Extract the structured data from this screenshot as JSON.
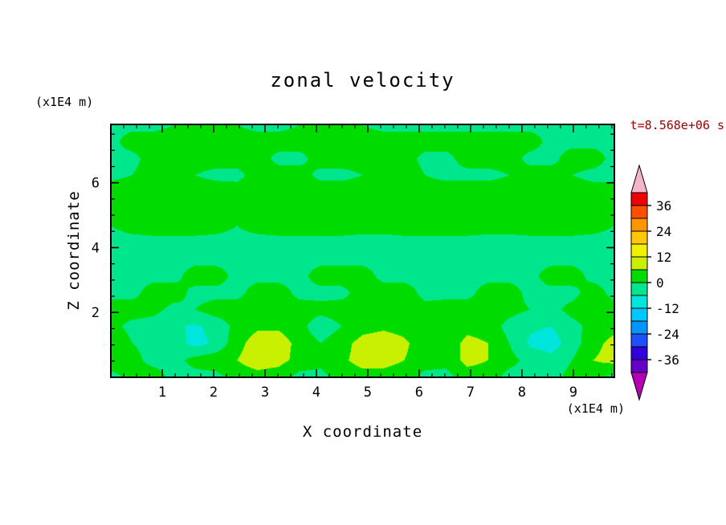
{
  "chart_data": {
    "type": "heatmap",
    "title": "zonal velocity",
    "time_label": "t=8.568e+06 s",
    "xlabel": "X coordinate",
    "ylabel": "Z coordinate",
    "x_unit": "(x1E4 m)",
    "z_unit": "(x1E4 m)",
    "x_range": [
      0,
      9.8
    ],
    "z_range": [
      0,
      7.8
    ],
    "x_ticks_major": [
      1,
      2,
      3,
      4,
      5,
      6,
      7,
      8,
      9
    ],
    "x_tick_minor_step": 0.25,
    "z_ticks_major": [
      2,
      4,
      6
    ],
    "z_tick_minor_step": 0.5,
    "grid_lines": false,
    "legend_position": "right-colorbar",
    "colorbar": {
      "labels": [
        36,
        24,
        12,
        0,
        -12,
        -24,
        -36
      ],
      "level_min": -42,
      "level_step": 6,
      "colors": [
        "#6400c8",
        "#3200dc",
        "#1e50ff",
        "#0096ff",
        "#00c8ff",
        "#00e6dc",
        "#00e68c",
        "#00dc00",
        "#c8f000",
        "#f0f000",
        "#ffc800",
        "#ff9600",
        "#ff5000",
        "#f00000"
      ],
      "under_color": "#b400b4",
      "over_color": "#f5b4c8"
    },
    "grid": {
      "x0": 0,
      "x1": 9.8,
      "z0": 0,
      "z1": 7.8,
      "values": [
        [
          -2,
          2,
          3,
          -2,
          -2,
          -2,
          3,
          4,
          3,
          -2,
          -2,
          3,
          4,
          4,
          3,
          -2,
          -2,
          3,
          3,
          -2,
          -2,
          -2,
          2,
          3,
          -2
        ],
        [
          4,
          2,
          -2,
          -2,
          2,
          4,
          6,
          9,
          8,
          4,
          2,
          5,
          8,
          8,
          6,
          3,
          2,
          8,
          6,
          2,
          -2,
          -4,
          0,
          6,
          8
        ],
        [
          6,
          0,
          -2,
          -3,
          -8,
          -5,
          4,
          9,
          9,
          4,
          0,
          4,
          8,
          9,
          7,
          3,
          2,
          8,
          6,
          0,
          -7,
          -9,
          -3,
          4,
          8
        ],
        [
          2,
          -2,
          -3,
          -5,
          -7,
          -4,
          2,
          5,
          5,
          2,
          -4,
          0,
          4,
          5,
          4,
          0,
          0,
          4,
          3,
          -2,
          -5,
          -6,
          -2,
          2,
          4
        ],
        [
          3,
          3,
          2,
          -2,
          0,
          3,
          3,
          3,
          3,
          3,
          2,
          3,
          3,
          3,
          3,
          2,
          3,
          3,
          3,
          2,
          0,
          -2,
          2,
          3,
          3
        ],
        [
          -2,
          -2,
          3,
          3,
          -2,
          -2,
          -2,
          3,
          3,
          -2,
          -2,
          -2,
          3,
          3,
          3,
          -2,
          -2,
          -2,
          3,
          3,
          -2,
          -2,
          -2,
          3,
          -2
        ],
        [
          -2,
          -2,
          -2,
          -2,
          3,
          3,
          -2,
          -2,
          -2,
          -2,
          3,
          3,
          3,
          -2,
          -2,
          -2,
          -2,
          -2,
          -2,
          -2,
          -2,
          3,
          3,
          -2,
          -2
        ],
        [
          -2,
          -2,
          -2,
          -2,
          -2,
          -2,
          -2,
          -2,
          -2,
          -2,
          -2,
          -2,
          -2,
          -2,
          -2,
          -2,
          -2,
          -2,
          -2,
          -2,
          -2,
          -2,
          -2,
          -2,
          -2
        ],
        [
          -2,
          -2,
          -2,
          -2,
          -2,
          -2,
          -2,
          -2,
          -2,
          -2,
          -2,
          -2,
          -2,
          -2,
          -2,
          -2,
          -2,
          -2,
          -2,
          -2,
          -2,
          -2,
          -2,
          -2,
          -2
        ],
        [
          0,
          2,
          3,
          3,
          3,
          2,
          0,
          2,
          3,
          3,
          3,
          3,
          2,
          2,
          3,
          3,
          3,
          3,
          2,
          2,
          3,
          3,
          3,
          2,
          0
        ],
        [
          4,
          4,
          4,
          4,
          4,
          4,
          4,
          4,
          4,
          4,
          4,
          4,
          4,
          4,
          4,
          4,
          4,
          4,
          4,
          4,
          4,
          4,
          4,
          4,
          4
        ],
        [
          4,
          4,
          4,
          4,
          4,
          4,
          3,
          3,
          4,
          4,
          4,
          4,
          4,
          4,
          3,
          3,
          4,
          4,
          4,
          4,
          4,
          4,
          4,
          3,
          3
        ],
        [
          -2,
          0,
          3,
          3,
          0,
          -2,
          -2,
          3,
          3,
          3,
          -2,
          -2,
          0,
          3,
          3,
          0,
          -2,
          -2,
          -2,
          0,
          3,
          3,
          0,
          -2,
          -2
        ],
        [
          -2,
          -2,
          3,
          3,
          3,
          3,
          3,
          3,
          -2,
          -2,
          3,
          3,
          3,
          3,
          3,
          -2,
          -2,
          3,
          3,
          3,
          -2,
          -2,
          3,
          3,
          -2
        ],
        [
          -2,
          3,
          3,
          3,
          3,
          3,
          3,
          3,
          3,
          3,
          3,
          3,
          3,
          3,
          3,
          3,
          3,
          3,
          3,
          3,
          3,
          -2,
          -2,
          -2,
          -2
        ],
        [
          -2,
          -2,
          -2,
          0,
          2,
          2,
          0,
          -2,
          -2,
          0,
          2,
          2,
          0,
          -2,
          -2,
          -2,
          -2,
          -2,
          -2,
          -2,
          -2,
          -2,
          -2,
          -2,
          -2
        ]
      ]
    }
  }
}
